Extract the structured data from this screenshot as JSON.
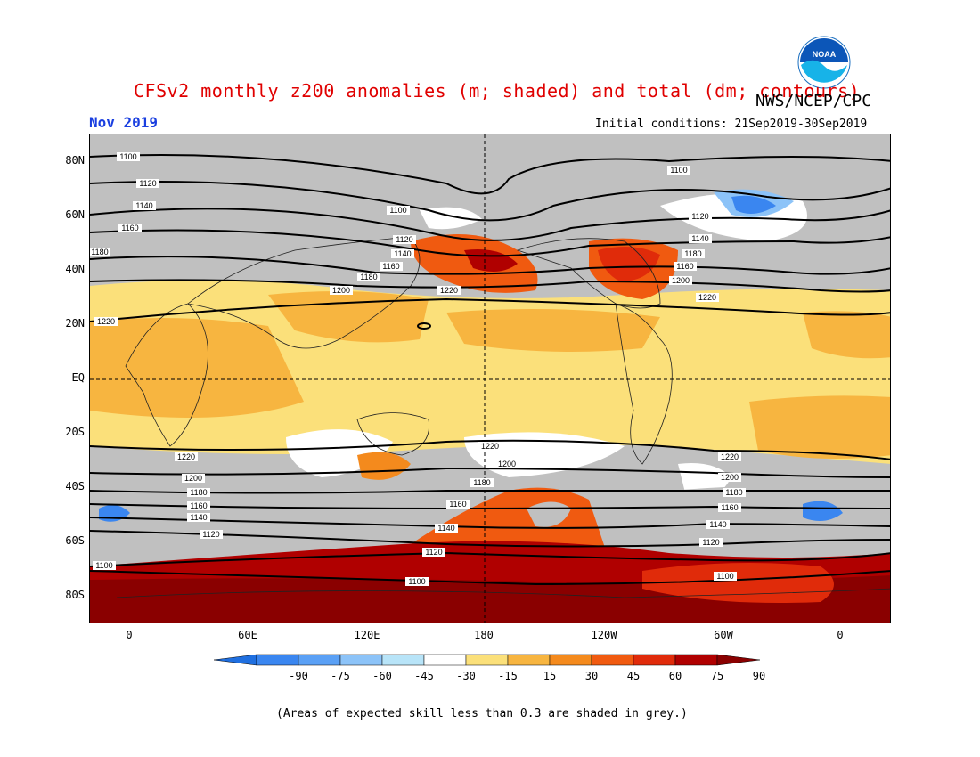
{
  "header": {
    "title": "CFSv2 monthly z200 anomalies (m; shaded) and total (dm; contours)",
    "title_color": "#e00000",
    "month": "Nov 2019",
    "month_color": "#1a3fe0",
    "agency": "NWS/NCEP/CPC",
    "initial_conditions": "Initial conditions: 21Sep2019-30Sep2019",
    "logo_icon": "noaa-logo-icon",
    "logo_text": "NOAA"
  },
  "map": {
    "lat_labels": [
      "80N",
      "60N",
      "40N",
      "20N",
      "EQ",
      "20S",
      "40S",
      "60S",
      "80S"
    ],
    "lon_labels": [
      "0",
      "60E",
      "120E",
      "180",
      "120W",
      "60W",
      "0"
    ],
    "contour_labels": [
      "1100",
      "1120",
      "1140",
      "1160",
      "1180",
      "1200",
      "1220"
    ],
    "low_skill_color": "#c0c0c0"
  },
  "colorbar": {
    "ticks": [
      "-90",
      "-75",
      "-60",
      "-45",
      "-30",
      "-15",
      "15",
      "30",
      "45",
      "60",
      "75",
      "90"
    ],
    "colors": [
      "#1f6fe0",
      "#3a86f0",
      "#5aa0f5",
      "#8cc3f8",
      "#b8e4f8",
      "#ffffff",
      "#fbe07a",
      "#f7b540",
      "#f48a1d",
      "#f05a10",
      "#e02b0a",
      "#b00000",
      "#8a0000"
    ]
  },
  "footer": {
    "note": "(Areas of expected skill less than 0.3 are shaded in grey.)"
  }
}
